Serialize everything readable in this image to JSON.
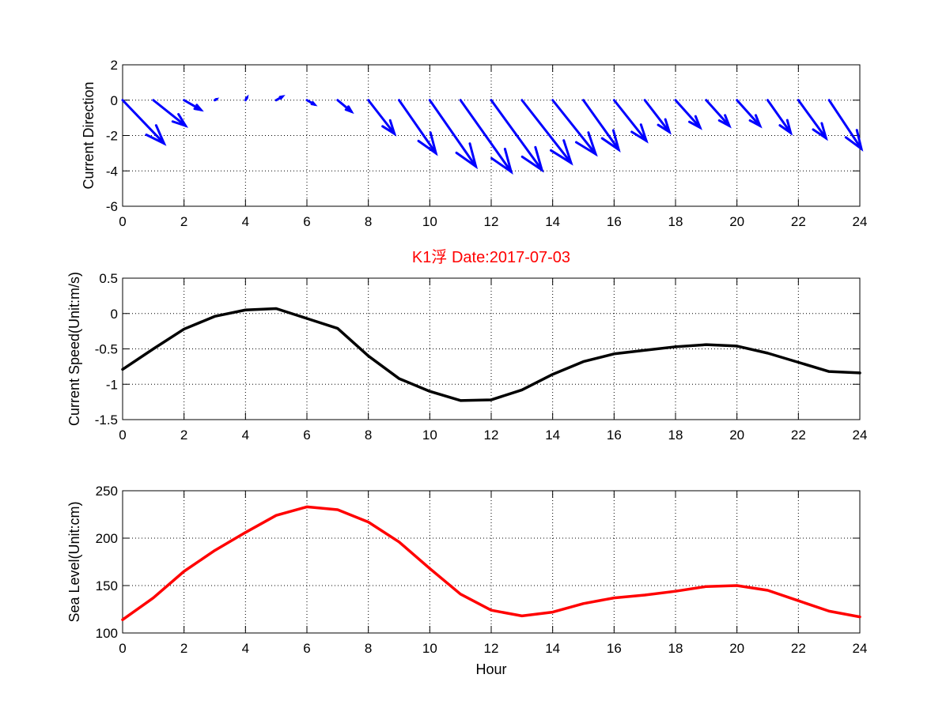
{
  "figure": {
    "title": "K1浮    Date:2017-07-03"
  },
  "chart_data": [
    {
      "type": "quiver",
      "ylabel": "Current Direction",
      "xlabel": "",
      "xlim": [
        0,
        24
      ],
      "ylim": [
        -6,
        2
      ],
      "xticks": [
        0,
        2,
        4,
        6,
        8,
        10,
        12,
        14,
        16,
        18,
        20,
        22,
        24
      ],
      "yticks": [
        -6,
        -4,
        -2,
        0,
        2
      ],
      "grid": true,
      "color": "#0000ff",
      "x": [
        0,
        1,
        2,
        3,
        4,
        5,
        6,
        7,
        8,
        9,
        10,
        11,
        12,
        13,
        14,
        15,
        16,
        17,
        18,
        19,
        20,
        21,
        22,
        23
      ],
      "u": [
        1.35,
        1.05,
        0.55,
        0.05,
        0.05,
        0.2,
        0.25,
        0.45,
        0.85,
        1.2,
        1.5,
        1.65,
        1.65,
        1.6,
        1.4,
        1.15,
        1.05,
        0.8,
        0.8,
        0.75,
        0.75,
        0.75,
        0.9,
        1.05
      ],
      "v": [
        -2.45,
        -1.45,
        -0.55,
        0.05,
        0.15,
        0.2,
        -0.25,
        -0.65,
        -1.9,
        -3.0,
        -3.75,
        -4.05,
        -3.95,
        -3.55,
        -3.05,
        -2.8,
        -2.3,
        -1.8,
        -1.55,
        -1.45,
        -1.45,
        -1.85,
        -2.15,
        -2.75
      ]
    },
    {
      "type": "line",
      "ylabel": "Current Speed(Unit:m/s)",
      "xlabel": "",
      "xlim": [
        0,
        24
      ],
      "ylim": [
        -1.5,
        0.5
      ],
      "xticks": [
        0,
        2,
        4,
        6,
        8,
        10,
        12,
        14,
        16,
        18,
        20,
        22,
        24
      ],
      "yticks": [
        -1.5,
        -1,
        -0.5,
        0,
        0.5
      ],
      "grid": true,
      "color": "#000000",
      "x": [
        0,
        1,
        2,
        3,
        4,
        5,
        6,
        7,
        8,
        9,
        10,
        11,
        12,
        13,
        14,
        15,
        16,
        17,
        18,
        19,
        20,
        21,
        22,
        23,
        24
      ],
      "y": [
        -0.79,
        -0.5,
        -0.22,
        -0.04,
        0.05,
        0.07,
        -0.07,
        -0.21,
        -0.6,
        -0.92,
        -1.1,
        -1.23,
        -1.22,
        -1.08,
        -0.86,
        -0.68,
        -0.57,
        -0.52,
        -0.47,
        -0.44,
        -0.46,
        -0.56,
        -0.69,
        -0.82,
        -0.84
      ]
    },
    {
      "type": "line",
      "ylabel": "Sea Level(Unit:cm)",
      "xlabel": "Hour",
      "xlim": [
        0,
        24
      ],
      "ylim": [
        100,
        250
      ],
      "xticks": [
        0,
        2,
        4,
        6,
        8,
        10,
        12,
        14,
        16,
        18,
        20,
        22,
        24
      ],
      "yticks": [
        100,
        150,
        200,
        250
      ],
      "grid": true,
      "color": "#ff0000",
      "x": [
        0,
        1,
        2,
        3,
        4,
        5,
        6,
        7,
        8,
        9,
        10,
        11,
        12,
        13,
        14,
        15,
        16,
        17,
        18,
        19,
        20,
        21,
        22,
        23,
        24
      ],
      "y": [
        114,
        137,
        165,
        187,
        206,
        224,
        233,
        230,
        217,
        196,
        168,
        141,
        124,
        118,
        122,
        131,
        137,
        140,
        144,
        149,
        150,
        145,
        134,
        123,
        117
      ]
    }
  ]
}
